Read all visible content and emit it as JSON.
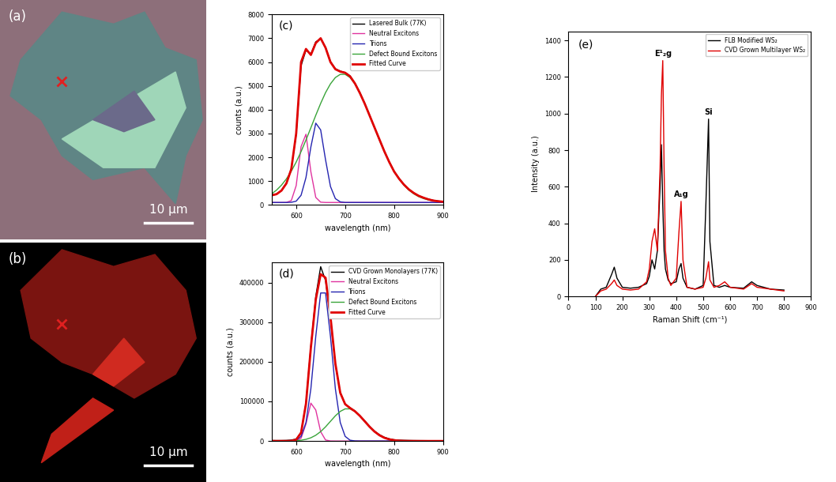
{
  "images": [
    {
      "label": "(a)",
      "scale_bar": "10 μm"
    },
    {
      "label": "(b)",
      "scale_bar": "10 μm"
    }
  ],
  "chart_data": [
    {
      "type": "line",
      "annotations": [
        {
          "text": "(c)"
        }
      ],
      "xlabel": "wavelength (nm)",
      "ylabel": "counts (a.u.)",
      "xlim": [
        550,
        900
      ],
      "xticks": [
        600,
        700,
        800,
        900
      ],
      "ylim": [
        0,
        8000
      ],
      "yticks": [
        0,
        1000,
        2000,
        3000,
        4000,
        5000,
        6000,
        7000,
        8000
      ],
      "legend": "upper right",
      "x": [
        550,
        560,
        570,
        580,
        590,
        600,
        610,
        620,
        630,
        640,
        650,
        660,
        670,
        680,
        690,
        700,
        710,
        720,
        730,
        740,
        750,
        760,
        770,
        780,
        790,
        800,
        810,
        820,
        830,
        840,
        850,
        860,
        870,
        880,
        890,
        900
      ],
      "series": [
        {
          "name": "Lasered Bulk (77K)",
          "color": "#000000",
          "values": [
            420,
            460,
            610,
            920,
            1520,
            2950,
            5850,
            6500,
            6330,
            6850,
            6980,
            6620,
            6020,
            5720,
            5620,
            5560,
            5420,
            5110,
            4720,
            4260,
            3760,
            3240,
            2740,
            2260,
            1810,
            1410,
            1120,
            860,
            650,
            500,
            390,
            300,
            240,
            190,
            160,
            140
          ]
        },
        {
          "name": "Neutral Excitons",
          "color": "#e0339f",
          "values": [
            100,
            100,
            100,
            103,
            178,
            808,
            2449,
            2968,
            1390,
            313,
            113,
            100,
            100,
            100,
            100,
            100,
            100,
            100,
            100,
            100,
            100,
            100,
            100,
            100,
            100,
            100,
            100,
            100,
            100,
            100,
            100,
            100,
            100,
            100,
            100,
            100
          ]
        },
        {
          "name": "Trions",
          "color": "#2424b0",
          "values": [
            100,
            100,
            100,
            100,
            106,
            156,
            403,
            1149,
            2435,
            3433,
            3149,
            1890,
            773,
            262,
            125,
            100,
            100,
            100,
            100,
            100,
            100,
            100,
            100,
            100,
            100,
            100,
            100,
            100,
            100,
            100,
            100,
            100,
            100,
            100,
            100,
            100
          ]
        },
        {
          "name": "Defect Bound Excitons",
          "color": "#3aa43a",
          "values": [
            465,
            622,
            829,
            1090,
            1414,
            1798,
            2239,
            2726,
            3241,
            3763,
            4263,
            4717,
            5084,
            5349,
            5483,
            5483,
            5349,
            5084,
            4717,
            4263,
            3763,
            3241,
            2726,
            2239,
            1798,
            1414,
            1090,
            829,
            622,
            465,
            348,
            265,
            206,
            167,
            141,
            125
          ]
        },
        {
          "name": "Fitted Curve",
          "color": "#e00000",
          "values": [
            400,
            450,
            600,
            900,
            1500,
            3000,
            6000,
            6550,
            6300,
            6800,
            7000,
            6600,
            6000,
            5700,
            5600,
            5550,
            5400,
            5100,
            4700,
            4250,
            3750,
            3250,
            2750,
            2250,
            1800,
            1400,
            1100,
            850,
            650,
            500,
            380,
            300,
            230,
            180,
            150,
            130
          ]
        }
      ]
    },
    {
      "type": "line",
      "annotations": [
        {
          "text": "(d)"
        }
      ],
      "xlabel": "wavelength (nm)",
      "ylabel": "counts (a.u.)",
      "xlim": [
        550,
        900
      ],
      "xticks": [
        600,
        700,
        800,
        900
      ],
      "ylim": [
        0,
        450000
      ],
      "yticks": [
        0,
        100000,
        200000,
        300000,
        400000
      ],
      "legend": "upper right",
      "x": [
        550,
        560,
        570,
        580,
        590,
        600,
        610,
        620,
        630,
        640,
        650,
        660,
        670,
        680,
        690,
        700,
        710,
        720,
        730,
        740,
        750,
        760,
        770,
        780,
        790,
        800,
        810,
        820,
        830,
        840,
        850,
        860,
        870,
        880,
        890,
        900
      ],
      "series": [
        {
          "name": "CVD Grown Monolayers (77K)",
          "color": "#000000",
          "values": [
            1500,
            1200,
            1300,
            1600,
            2500,
            5000,
            22000,
            96000,
            240000,
            365000,
            440000,
            405000,
            310000,
            193000,
            122000,
            93000,
            84000,
            76000,
            64000,
            51000,
            37000,
            25000,
            16000,
            9500,
            5500,
            3200,
            2200,
            1700,
            1400,
            1200,
            1100,
            1000,
            900,
            900,
            800,
            800
          ]
        },
        {
          "name": "Neutral Excitons",
          "color": "#e0339f",
          "values": [
            0,
            0,
            0,
            0,
            0,
            440,
            7100,
            43000,
            95600,
            78300,
            23600,
            2600,
            110,
            0,
            0,
            0,
            0,
            0,
            0,
            0,
            0,
            0,
            0,
            0,
            0,
            0,
            0,
            0,
            0,
            0,
            0,
            0,
            0,
            0,
            0,
            0
          ]
        },
        {
          "name": "Trions",
          "color": "#2424b0",
          "values": [
            0,
            0,
            0,
            0,
            0,
            2080,
            11800,
            46800,
            132000,
            264000,
            373600,
            373600,
            264000,
            132000,
            46800,
            11800,
            2080,
            260,
            0,
            0,
            0,
            0,
            0,
            0,
            0,
            0,
            0,
            0,
            0,
            0,
            0,
            0,
            0,
            0,
            0,
            0
          ]
        },
        {
          "name": "Defect Bound Excitons",
          "color": "#3aa43a",
          "values": [
            0,
            0,
            0,
            0,
            370,
            910,
            2060,
            4300,
            8220,
            14600,
            23850,
            35860,
            49760,
            63540,
            74810,
            81170,
            81170,
            74810,
            63540,
            49760,
            35860,
            23850,
            14600,
            8220,
            4300,
            2060,
            910,
            370,
            140,
            50,
            0,
            0,
            0,
            0,
            0,
            0
          ]
        },
        {
          "name": "Fitted Curve",
          "color": "#e00000",
          "values": [
            0,
            0,
            0,
            0,
            370,
            3430,
            20960,
            94100,
            235820,
            356900,
            421050,
            412060,
            313870,
            195540,
            121610,
            92970,
            83250,
            75070,
            63540,
            49760,
            35860,
            23850,
            14600,
            8220,
            4300,
            2060,
            910,
            370,
            140,
            50,
            0,
            0,
            0,
            0,
            0,
            0
          ]
        }
      ]
    },
    {
      "type": "line",
      "annotations": [
        {
          "text": "(e)"
        },
        {
          "text": "E¹₂g",
          "x": 350
        },
        {
          "text": "A₁g",
          "x": 418
        },
        {
          "text": "Si",
          "x": 520
        }
      ],
      "xlabel": "Raman Shift (cm⁻¹)",
      "ylabel": "Intensity (a.u.)",
      "xlim": [
        0,
        900
      ],
      "xticks": [
        0,
        100,
        200,
        300,
        400,
        500,
        600,
        700,
        800,
        900
      ],
      "ylim": [
        0,
        1450
      ],
      "yticks": [
        0,
        200,
        400,
        600,
        800,
        1000,
        1200,
        1400
      ],
      "legend": "upper right",
      "x": [
        100,
        120,
        140,
        160,
        170,
        180,
        200,
        230,
        260,
        290,
        300,
        310,
        320,
        330,
        340,
        345,
        350,
        355,
        360,
        370,
        380,
        400,
        410,
        418,
        425,
        440,
        470,
        500,
        510,
        520,
        525,
        540,
        560,
        580,
        600,
        650,
        680,
        700,
        750,
        800
      ],
      "series": [
        {
          "name": "FLB Modified WS₂",
          "color": "#000000",
          "values": [
            0,
            40,
            50,
            120,
            160,
            100,
            50,
            45,
            50,
            70,
            110,
            200,
            150,
            250,
            600,
            830,
            500,
            250,
            150,
            90,
            70,
            80,
            150,
            180,
            100,
            50,
            40,
            60,
            500,
            970,
            300,
            60,
            50,
            60,
            50,
            45,
            80,
            60,
            40,
            35
          ]
        },
        {
          "name": "CVD Grown Multilayer WS₂",
          "color": "#e00000",
          "values": [
            0,
            30,
            40,
            70,
            90,
            60,
            40,
            35,
            40,
            80,
            150,
            300,
            370,
            250,
            700,
            1100,
            1290,
            700,
            250,
            100,
            60,
            100,
            350,
            520,
            200,
            50,
            40,
            50,
            100,
            190,
            90,
            50,
            60,
            80,
            50,
            40,
            70,
            50,
            40,
            30
          ]
        }
      ]
    }
  ]
}
